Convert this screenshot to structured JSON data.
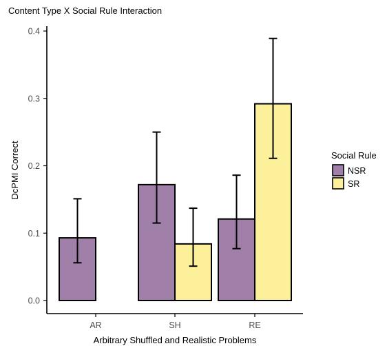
{
  "chart_data": {
    "type": "bar",
    "title": "Content Type X Social Rule Interaction",
    "xlabel": "Arbitrary Shuffled and Realistic Problems",
    "ylabel": "DcPMI Correct",
    "categories": [
      "AR",
      "SH",
      "RE"
    ],
    "ylim": [
      0,
      0.4
    ],
    "yticks": [
      "0.0",
      "0.1",
      "0.2",
      "0.3",
      "0.4"
    ],
    "ytick_values": [
      0,
      0.1,
      0.2,
      0.3,
      0.4
    ],
    "grid": false,
    "legend_title": "Social Rule",
    "legend_position": "right",
    "series": [
      {
        "name": "NSR",
        "color": "#a07fa8",
        "values": [
          0.093,
          0.172,
          0.121
        ],
        "err_low": [
          0.056,
          0.115,
          0.077
        ],
        "err_high": [
          0.151,
          0.25,
          0.186
        ]
      },
      {
        "name": "SR",
        "color": "#fdf09a",
        "values": [
          null,
          0.084,
          0.292
        ],
        "err_low": [
          null,
          0.051,
          0.211
        ],
        "err_high": [
          null,
          0.137,
          0.389
        ]
      }
    ]
  }
}
